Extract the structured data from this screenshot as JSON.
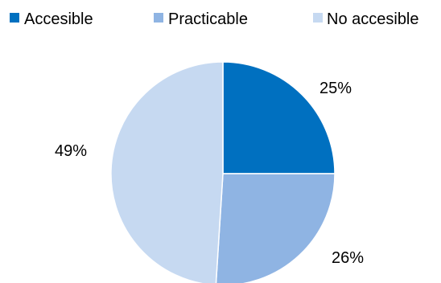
{
  "chart_data": {
    "type": "pie",
    "categories": [
      "Accesible",
      "Practicable",
      "No accesible"
    ],
    "values": [
      25,
      26,
      49
    ],
    "data_labels": [
      "25%",
      "26%",
      "49%"
    ],
    "colors": [
      "#0070C0",
      "#8FB4E3",
      "#C6D9F1"
    ],
    "legend": "top",
    "start_angle_deg": 0,
    "direction": "clockwise"
  }
}
